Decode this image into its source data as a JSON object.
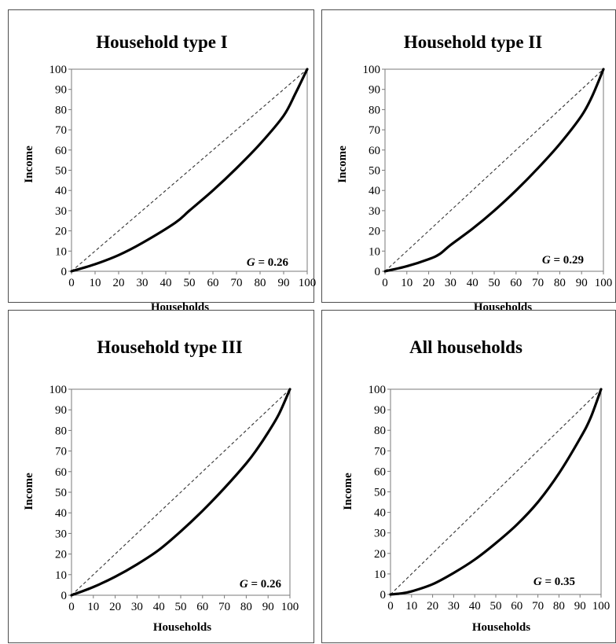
{
  "chart_data": [
    {
      "type": "line",
      "title": "Household type I",
      "xlabel": "Households",
      "ylabel": "Income",
      "xlim": [
        0,
        100
      ],
      "ylim": [
        0,
        100
      ],
      "xticks": [
        "0",
        "10",
        "20",
        "30",
        "40",
        "50",
        "60",
        "70",
        "80",
        "90",
        "100"
      ],
      "yticks": [
        "0",
        "10",
        "20",
        "30",
        "40",
        "50",
        "60",
        "70",
        "80",
        "90",
        "100"
      ],
      "grid": false,
      "legend": "none",
      "annotation": {
        "var": "G",
        "text": " = 0.26"
      },
      "series": [
        {
          "style": "equality-dashed",
          "x": [
            0,
            100
          ],
          "y": [
            0,
            100
          ]
        },
        {
          "style": "lorenz-solid",
          "x": [
            0,
            10,
            20,
            30,
            44,
            50,
            60,
            70,
            80,
            90,
            95,
            100
          ],
          "y": [
            0,
            3.5,
            8,
            14,
            24,
            30,
            40,
            51,
            63,
            77,
            88,
            100
          ]
        }
      ]
    },
    {
      "type": "line",
      "title": "Household type II",
      "xlabel": "Households",
      "ylabel": "Income",
      "xlim": [
        0,
        100
      ],
      "ylim": [
        0,
        100
      ],
      "xticks": [
        "0",
        "10",
        "20",
        "30",
        "40",
        "50",
        "60",
        "70",
        "80",
        "90",
        "100"
      ],
      "yticks": [
        "0",
        "10",
        "20",
        "30",
        "40",
        "50",
        "60",
        "70",
        "80",
        "90",
        "100"
      ],
      "grid": false,
      "legend": "none",
      "annotation": {
        "var": "G",
        "text": " = 0.29"
      },
      "series": [
        {
          "style": "equality-dashed",
          "x": [
            0,
            100
          ],
          "y": [
            0,
            100
          ]
        },
        {
          "style": "lorenz-solid",
          "x": [
            0,
            10,
            20,
            25,
            30,
            40,
            50,
            60,
            70,
            80,
            90,
            95,
            100
          ],
          "y": [
            0,
            2.5,
            6,
            8.5,
            13,
            21,
            30,
            40,
            51,
            63,
            77,
            87,
            100
          ]
        }
      ]
    },
    {
      "type": "line",
      "title": "Household type III",
      "xlabel": "Households",
      "ylabel": "Income",
      "xlim": [
        0,
        100
      ],
      "ylim": [
        0,
        100
      ],
      "xticks": [
        "0",
        "10",
        "20",
        "30",
        "40",
        "50",
        "60",
        "70",
        "80",
        "90",
        "100"
      ],
      "yticks": [
        "0",
        "10",
        "20",
        "30",
        "40",
        "50",
        "60",
        "70",
        "80",
        "90",
        "100"
      ],
      "grid": false,
      "legend": "none",
      "annotation": {
        "var": "G",
        "text": " = 0.26"
      },
      "series": [
        {
          "style": "equality-dashed",
          "x": [
            0,
            100
          ],
          "y": [
            0,
            100
          ]
        },
        {
          "style": "lorenz-solid",
          "x": [
            0,
            10,
            20,
            30,
            40,
            50,
            60,
            70,
            80,
            85,
            90,
            95,
            100
          ],
          "y": [
            0,
            4,
            9,
            15,
            22,
            31,
            41,
            52,
            64,
            71,
            79,
            88,
            100
          ]
        }
      ]
    },
    {
      "type": "line",
      "title": "All households",
      "xlabel": "Households",
      "ylabel": "Income",
      "xlim": [
        0,
        100
      ],
      "ylim": [
        0,
        100
      ],
      "xticks": [
        "0",
        "10",
        "20",
        "30",
        "40",
        "50",
        "60",
        "70",
        "80",
        "90",
        "100"
      ],
      "yticks": [
        "0",
        "10",
        "20",
        "30",
        "40",
        "50",
        "60",
        "70",
        "80",
        "90",
        "100"
      ],
      "grid": false,
      "legend": "none",
      "annotation": {
        "var": "G",
        "text": " = 0.35"
      },
      "series": [
        {
          "style": "equality-dashed",
          "x": [
            0,
            100
          ],
          "y": [
            0,
            100
          ]
        },
        {
          "style": "lorenz-solid",
          "x": [
            0,
            5,
            10,
            20,
            30,
            40,
            50,
            60,
            70,
            80,
            90,
            95,
            100
          ],
          "y": [
            0,
            0.5,
            1.5,
            5,
            10.5,
            17,
            25,
            34,
            45,
            59,
            76,
            86,
            100
          ]
        }
      ]
    }
  ]
}
